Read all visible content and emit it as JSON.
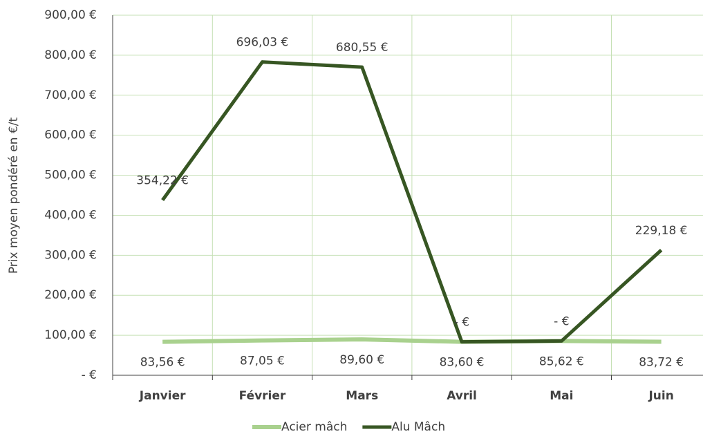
{
  "chart_data": {
    "type": "line",
    "stacked": true,
    "y_label": "Prix moyen pondéré en €/t",
    "categories": [
      "Janvier",
      "Février",
      "Mars",
      "Avril",
      "Mai",
      "Juin"
    ],
    "series": [
      {
        "name": "Acier mâch",
        "color": "#a9d18e",
        "values": [
          83.56,
          87.05,
          89.6,
          83.6,
          85.62,
          83.72
        ],
        "value_labels": [
          "83,56  €",
          "87,05  €",
          "89,60  €",
          "83,60  €",
          "85,62  €",
          "83,72  €"
        ]
      },
      {
        "name": "Alu Mâch",
        "color": "#375623",
        "values": [
          354.22,
          696.03,
          680.55,
          0,
          0,
          229.18
        ],
        "value_labels": [
          "354,22  €",
          "696,03  €",
          "680,55  €",
          "-    €",
          "-    €",
          "229,18  €"
        ]
      }
    ],
    "ylim": [
      0,
      900
    ],
    "yticks": [
      {
        "value": 0,
        "label": "-    €"
      },
      {
        "value": 100,
        "label": "100,00  €"
      },
      {
        "value": 200,
        "label": "200,00  €"
      },
      {
        "value": 300,
        "label": "300,00  €"
      },
      {
        "value": 400,
        "label": "400,00  €"
      },
      {
        "value": 500,
        "label": "500,00  €"
      },
      {
        "value": 600,
        "label": "600,00  €"
      },
      {
        "value": 700,
        "label": "700,00  €"
      },
      {
        "value": 800,
        "label": "800,00  €"
      },
      {
        "value": 900,
        "label": "900,00  €"
      }
    ],
    "grid": true,
    "legend": "bottom"
  }
}
